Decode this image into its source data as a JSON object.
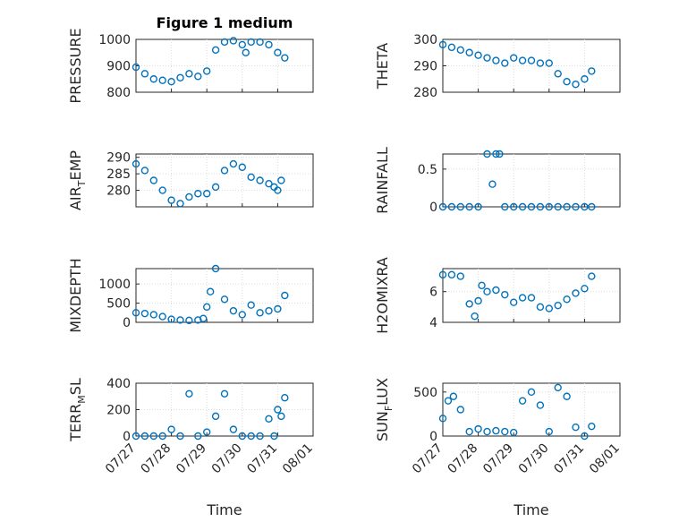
{
  "figure": {
    "title": "Figure 1 medium",
    "xlabel": "Time",
    "x_ticks": [
      "07/27",
      "07/28",
      "07/29",
      "07/30",
      "07/31",
      "08/01"
    ],
    "marker_color": "#0072bd"
  },
  "chart_data": [
    {
      "type": "scatter",
      "title": "Figure 1 medium",
      "ylabel": "PRESSURE",
      "ylabel_main": "PRESSURE",
      "ylabel_sub": "",
      "ylabel_tail": "",
      "xlabel": "",
      "xlim": [
        "07/27",
        "08/01"
      ],
      "ylim": [
        800,
        1000
      ],
      "yticks": [
        800,
        900,
        1000
      ],
      "grid": true,
      "x": [
        0.0,
        0.25,
        0.5,
        0.75,
        1.0,
        1.25,
        1.5,
        1.75,
        2.0,
        2.25,
        2.5,
        2.75,
        3.0,
        3.1,
        3.25,
        3.5,
        3.75,
        4.0,
        4.2
      ],
      "y": [
        895,
        870,
        850,
        845,
        840,
        855,
        870,
        860,
        880,
        960,
        990,
        995,
        980,
        950,
        990,
        990,
        980,
        950,
        930
      ]
    },
    {
      "type": "scatter",
      "title": "",
      "ylabel": "THETA",
      "ylabel_main": "THETA",
      "ylabel_sub": "",
      "ylabel_tail": "",
      "xlabel": "",
      "xlim": [
        "07/27",
        "08/01"
      ],
      "ylim": [
        280,
        300
      ],
      "yticks": [
        280,
        290,
        300
      ],
      "grid": true,
      "x": [
        0.0,
        0.25,
        0.5,
        0.75,
        1.0,
        1.25,
        1.5,
        1.75,
        2.0,
        2.25,
        2.5,
        2.75,
        3.0,
        3.25,
        3.5,
        3.75,
        4.0,
        4.2
      ],
      "y": [
        298,
        297,
        296,
        295,
        294,
        293,
        292,
        291,
        293,
        292,
        292,
        291,
        291,
        287,
        284,
        283,
        285,
        288
      ]
    },
    {
      "type": "scatter",
      "title": "",
      "ylabel": "AIR_TEMP",
      "ylabel_main": "AIR",
      "ylabel_sub": "T",
      "ylabel_tail": "EMP",
      "xlabel": "",
      "xlim": [
        "07/27",
        "08/01"
      ],
      "ylim": [
        275,
        291
      ],
      "yticks": [
        280,
        285,
        290
      ],
      "grid": true,
      "x": [
        0.0,
        0.25,
        0.5,
        0.75,
        1.0,
        1.25,
        1.5,
        1.75,
        2.0,
        2.25,
        2.5,
        2.75,
        3.0,
        3.25,
        3.5,
        3.75,
        3.9,
        4.0,
        4.1
      ],
      "y": [
        288,
        286,
        283,
        280,
        277,
        276,
        278,
        279,
        279,
        281,
        286,
        288,
        287,
        284,
        283,
        282,
        281,
        280,
        283
      ]
    },
    {
      "type": "scatter",
      "title": "",
      "ylabel": "RAINFALL",
      "ylabel_main": "RAINFALL",
      "ylabel_sub": "",
      "ylabel_tail": "",
      "xlabel": "",
      "xlim": [
        "07/27",
        "08/01"
      ],
      "ylim": [
        0,
        0.7
      ],
      "yticks": [
        0,
        0.5
      ],
      "grid": true,
      "x": [
        0.0,
        0.25,
        0.5,
        0.75,
        1.0,
        1.25,
        1.4,
        1.5,
        1.6,
        1.75,
        2.0,
        2.25,
        2.5,
        2.75,
        3.0,
        3.25,
        3.5,
        3.75,
        4.0,
        4.2
      ],
      "y": [
        0,
        0,
        0,
        0,
        0,
        0.7,
        0.3,
        0.7,
        0.7,
        0,
        0,
        0,
        0,
        0,
        0,
        0,
        0,
        0,
        0,
        0
      ]
    },
    {
      "type": "scatter",
      "title": "",
      "ylabel": "MIXDEPTH",
      "ylabel_main": "MIXDEPTH",
      "ylabel_sub": "",
      "ylabel_tail": "",
      "xlabel": "",
      "xlim": [
        "07/27",
        "08/01"
      ],
      "ylim": [
        0,
        1400
      ],
      "yticks": [
        0,
        500,
        1000
      ],
      "grid": true,
      "x": [
        0.0,
        0.25,
        0.5,
        0.75,
        1.0,
        1.25,
        1.5,
        1.75,
        1.9,
        2.0,
        2.1,
        2.25,
        2.5,
        2.75,
        3.0,
        3.25,
        3.5,
        3.75,
        4.0,
        4.2
      ],
      "y": [
        250,
        230,
        200,
        150,
        80,
        60,
        50,
        60,
        100,
        400,
        800,
        1400,
        600,
        300,
        200,
        450,
        250,
        300,
        350,
        700
      ]
    },
    {
      "type": "scatter",
      "title": "",
      "ylabel": "H2OMIXRA",
      "ylabel_main": "H2OMIXRA",
      "ylabel_sub": "",
      "ylabel_tail": "",
      "xlabel": "",
      "xlim": [
        "07/27",
        "08/01"
      ],
      "ylim": [
        4,
        7.5
      ],
      "yticks": [
        4,
        6
      ],
      "grid": true,
      "x": [
        0.0,
        0.25,
        0.5,
        0.75,
        0.9,
        1.0,
        1.1,
        1.25,
        1.5,
        1.75,
        2.0,
        2.25,
        2.5,
        2.75,
        3.0,
        3.25,
        3.5,
        3.75,
        4.0,
        4.2
      ],
      "y": [
        7.1,
        7.1,
        7.0,
        5.2,
        4.4,
        5.4,
        6.4,
        6.0,
        6.1,
        5.8,
        5.3,
        5.6,
        5.6,
        5.0,
        4.9,
        5.1,
        5.5,
        5.9,
        6.2,
        7.0
      ]
    },
    {
      "type": "scatter",
      "title": "",
      "ylabel": "TERR_MSL",
      "ylabel_main": "TERR",
      "ylabel_sub": "M",
      "ylabel_tail": "SL",
      "xlabel": "",
      "xlim": [
        "07/27",
        "08/01"
      ],
      "ylim": [
        0,
        400
      ],
      "yticks": [
        0,
        200,
        400
      ],
      "grid": true,
      "x": [
        0.0,
        0.25,
        0.5,
        0.75,
        1.0,
        1.25,
        1.5,
        1.75,
        2.0,
        2.25,
        2.5,
        2.75,
        3.0,
        3.25,
        3.5,
        3.75,
        3.9,
        4.0,
        4.1,
        4.2
      ],
      "y": [
        0,
        0,
        0,
        0,
        50,
        0,
        320,
        0,
        30,
        150,
        320,
        50,
        0,
        0,
        0,
        130,
        0,
        200,
        150,
        290
      ]
    },
    {
      "type": "scatter",
      "title": "",
      "ylabel": "SUN_FLUX",
      "ylabel_main": "SUN",
      "ylabel_sub": "F",
      "ylabel_tail": "LUX",
      "xlabel": "",
      "xlim": [
        "07/27",
        "08/01"
      ],
      "ylim": [
        0,
        600
      ],
      "yticks": [
        0,
        500
      ],
      "grid": true,
      "x": [
        0.0,
        0.15,
        0.3,
        0.5,
        0.75,
        1.0,
        1.25,
        1.5,
        1.75,
        2.0,
        2.25,
        2.5,
        2.75,
        3.0,
        3.25,
        3.5,
        3.75,
        4.0,
        4.2
      ],
      "y": [
        200,
        400,
        450,
        300,
        50,
        80,
        50,
        60,
        50,
        40,
        400,
        500,
        350,
        50,
        550,
        450,
        100,
        0,
        110
      ]
    }
  ]
}
